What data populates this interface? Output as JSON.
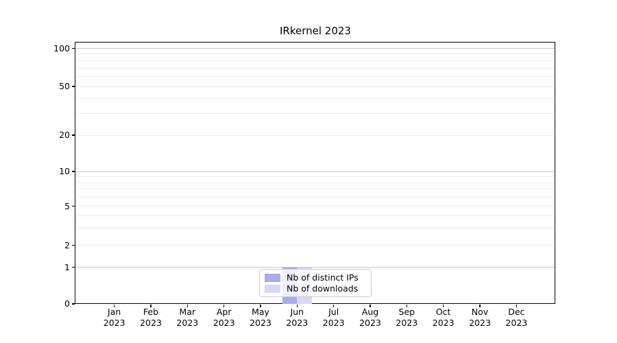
{
  "chart_data": {
    "type": "bar",
    "title": "IRkernel 2023",
    "categories": [
      "Jan",
      "Feb",
      "Mar",
      "Apr",
      "May",
      "Jun",
      "Jul",
      "Aug",
      "Sep",
      "Oct",
      "Nov",
      "Dec"
    ],
    "year": "2023",
    "series": [
      {
        "name": "Nb of distinct IPs",
        "color": "#aaaaee",
        "values": [
          0,
          0,
          0,
          0,
          0,
          1,
          0,
          0,
          0,
          0,
          0,
          0
        ]
      },
      {
        "name": "Nb of downloads",
        "color": "#d8d8f4",
        "values": [
          0,
          0,
          0,
          0,
          0,
          1,
          0,
          0,
          0,
          0,
          0,
          0
        ]
      }
    ],
    "xlabel": "",
    "ylabel": "",
    "yscale": "symlog",
    "ylim": [
      0,
      112
    ],
    "ytick_values": [
      0,
      1,
      2,
      5,
      10,
      20,
      50,
      100
    ],
    "ytick_labels": [
      "0",
      "1",
      "2",
      "5",
      "10",
      "20",
      "50",
      "100"
    ],
    "major_grid_values": [
      1,
      10,
      100
    ],
    "minor_grid_values": [
      2,
      3,
      4,
      5,
      6,
      7,
      8,
      9,
      20,
      30,
      40,
      50,
      60,
      70,
      80,
      90
    ],
    "grid": true,
    "legend": {
      "position": "lower center",
      "entries": [
        "Nb of distinct IPs",
        "Nb of downloads"
      ]
    },
    "colors": {
      "distinct_ips": "#aaaaee",
      "downloads": "#d8d8f4",
      "major_grid": "#c6c6c6",
      "minor_grid": "#ececec"
    }
  }
}
